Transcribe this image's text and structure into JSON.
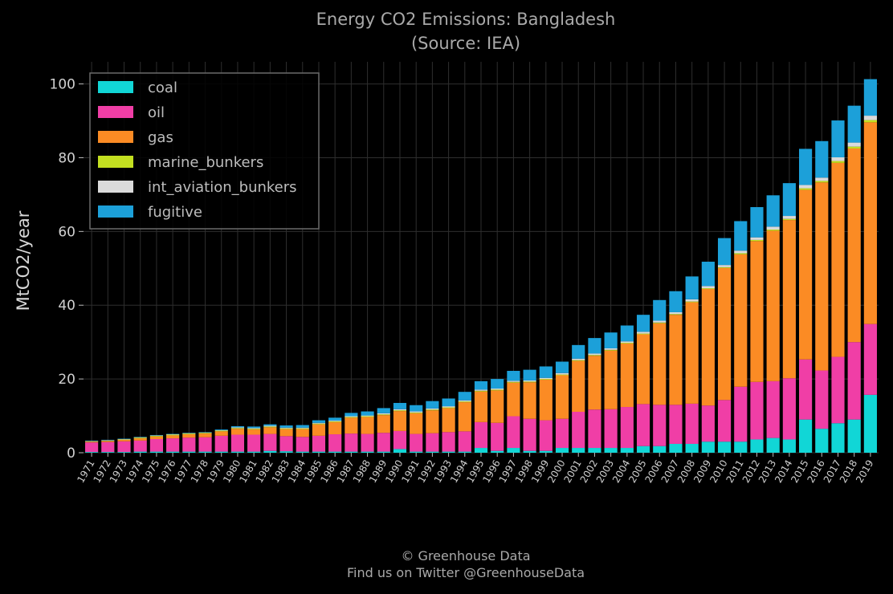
{
  "title_line1": "Energy CO2 Emissions: Bangladesh",
  "title_line2": "(Source: IEA)",
  "footer_line1": "© Greenhouse Data",
  "footer_line2": "Find us on Twitter @GreenhouseData",
  "chart_data": {
    "type": "bar",
    "stacked": true,
    "ylabel": "MtCO2/year",
    "xlabel": "",
    "ylim": [
      0,
      106
    ],
    "yticks": [
      0,
      20,
      40,
      60,
      80,
      100
    ],
    "grid": true,
    "legend_position": "top-left",
    "categories": [
      "1971",
      "1972",
      "1973",
      "1974",
      "1975",
      "1976",
      "1977",
      "1978",
      "1979",
      "1980",
      "1981",
      "1982",
      "1983",
      "1984",
      "1985",
      "1986",
      "1987",
      "1988",
      "1989",
      "1990",
      "1991",
      "1992",
      "1993",
      "1994",
      "1995",
      "1996",
      "1997",
      "1998",
      "1999",
      "2000",
      "2001",
      "2002",
      "2003",
      "2004",
      "2005",
      "2006",
      "2007",
      "2008",
      "2009",
      "2010",
      "2011",
      "2012",
      "2013",
      "2014",
      "2015",
      "2016",
      "2017",
      "2018",
      "2019"
    ],
    "series": [
      {
        "name": "coal",
        "color": "#11d6d6",
        "values": [
          0.2,
          0.2,
          0.2,
          0.3,
          0.3,
          0.3,
          0.3,
          0.3,
          0.3,
          0.3,
          0.3,
          0.5,
          0.4,
          0.3,
          0.3,
          0.3,
          0.3,
          0.3,
          0.3,
          1.0,
          0.3,
          0.3,
          0.3,
          0.3,
          1.3,
          0.5,
          1.3,
          0.5,
          0.5,
          1.3,
          1.3,
          1.3,
          1.3,
          1.3,
          1.8,
          1.8,
          2.4,
          2.4,
          3.0,
          3.0,
          3.0,
          3.6,
          4.0,
          3.6,
          9.0,
          6.5,
          8.0,
          9.0,
          15.7
        ]
      },
      {
        "name": "oil",
        "color": "#f03ea6",
        "values": [
          2.6,
          2.7,
          2.9,
          3.0,
          3.4,
          3.6,
          3.8,
          3.9,
          4.3,
          4.6,
          4.6,
          4.6,
          4.1,
          4.0,
          4.3,
          4.7,
          4.9,
          4.8,
          5.1,
          4.9,
          4.8,
          5.0,
          5.3,
          5.5,
          7.0,
          7.6,
          8.6,
          8.7,
          8.3,
          7.9,
          9.8,
          10.4,
          10.5,
          11.1,
          11.4,
          11.2,
          10.6,
          10.9,
          9.8,
          11.3,
          14.9,
          15.6,
          15.4,
          16.6,
          16.3,
          15.8,
          18.0,
          21.0,
          19.2
        ]
      },
      {
        "name": "gas",
        "color": "#fb8b24",
        "values": [
          0.2,
          0.3,
          0.4,
          0.6,
          0.7,
          0.8,
          0.9,
          1.0,
          1.2,
          1.6,
          1.4,
          1.8,
          1.9,
          2.1,
          3.1,
          3.3,
          4.3,
          4.6,
          4.8,
          5.4,
          5.6,
          6.2,
          6.5,
          7.9,
          8.3,
          8.8,
          9.1,
          9.9,
          11.0,
          11.8,
          13.8,
          14.6,
          15.9,
          17.2,
          18.9,
          22.1,
          24.4,
          27.5,
          31.6,
          35.8,
          35.9,
          38.2,
          40.8,
          42.9,
          46.0,
          51.0,
          52.6,
          52.5,
          54.7
        ]
      },
      {
        "name": "marine_bunkers",
        "color": "#c3df20",
        "values": [
          0.1,
          0.1,
          0.1,
          0.2,
          0.2,
          0.2,
          0.2,
          0.2,
          0.2,
          0.2,
          0.2,
          0.2,
          0.2,
          0.2,
          0.2,
          0.2,
          0.2,
          0.2,
          0.2,
          0.2,
          0.2,
          0.2,
          0.2,
          0.2,
          0.2,
          0.2,
          0.2,
          0.2,
          0.2,
          0.2,
          0.2,
          0.2,
          0.2,
          0.2,
          0.2,
          0.2,
          0.2,
          0.2,
          0.2,
          0.2,
          0.3,
          0.3,
          0.3,
          0.3,
          0.4,
          0.4,
          0.5,
          0.5,
          0.6
        ]
      },
      {
        "name": "int_aviation_bunkers",
        "color": "#dadada",
        "values": [
          0.1,
          0.1,
          0.1,
          0.1,
          0.1,
          0.1,
          0.1,
          0.1,
          0.1,
          0.2,
          0.2,
          0.2,
          0.2,
          0.2,
          0.2,
          0.2,
          0.2,
          0.2,
          0.3,
          0.3,
          0.3,
          0.3,
          0.3,
          0.3,
          0.3,
          0.3,
          0.3,
          0.3,
          0.3,
          0.4,
          0.4,
          0.4,
          0.4,
          0.4,
          0.5,
          0.5,
          0.5,
          0.6,
          0.6,
          0.6,
          0.7,
          0.7,
          0.8,
          0.8,
          0.9,
          0.9,
          1.0,
          1.1,
          1.2
        ]
      },
      {
        "name": "fugitive",
        "color": "#1ca0d9",
        "values": [
          0.1,
          0.1,
          0.1,
          0.1,
          0.1,
          0.1,
          0.1,
          0.1,
          0.2,
          0.3,
          0.4,
          0.4,
          0.6,
          0.7,
          0.7,
          0.8,
          0.9,
          1.1,
          1.4,
          1.7,
          1.7,
          2.0,
          2.1,
          2.3,
          2.3,
          2.6,
          2.7,
          2.9,
          3.1,
          3.1,
          3.7,
          4.2,
          4.3,
          4.3,
          4.6,
          5.6,
          5.7,
          6.2,
          6.6,
          7.3,
          8.0,
          8.2,
          8.5,
          8.9,
          9.8,
          9.9,
          10.0,
          10.0,
          9.9
        ]
      }
    ]
  }
}
